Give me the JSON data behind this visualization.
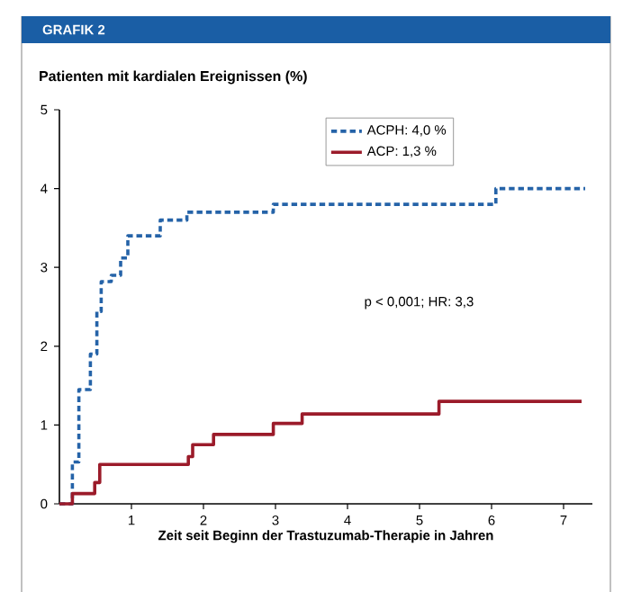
{
  "chart_data": {
    "type": "step",
    "title": "GRAFIK 2",
    "ylabel": "Patienten mit kardialen Ereignissen (%)",
    "xlabel": "Zeit seit Beginn der Trastuzumab-Therapie in Jahren",
    "annotations": [
      "p < 0,001; HR: 3,3"
    ],
    "series": [
      {
        "name": "ACPH: 4,0 %",
        "color": "#2563a8",
        "line_style": "dashed",
        "x": [
          0,
          0.18,
          0.27,
          0.43,
          0.52,
          0.58,
          0.72,
          0.85,
          0.95,
          1.4,
          1.77,
          2.97,
          6.06,
          7.3
        ],
        "values": [
          0,
          0.53,
          1.45,
          1.9,
          2.44,
          2.82,
          2.9,
          3.12,
          3.4,
          3.6,
          3.7,
          3.8,
          4.0,
          4.0
        ]
      },
      {
        "name": "ACP: 1,3 %",
        "color": "#9b1b2a",
        "line_style": "solid",
        "x": [
          0,
          0.18,
          0.49,
          0.56,
          1.79,
          1.85,
          2.14,
          2.97,
          3.37,
          5.27,
          7.25
        ],
        "values": [
          0,
          0.13,
          0.27,
          0.5,
          0.6,
          0.75,
          0.88,
          1.02,
          1.14,
          1.3,
          1.3
        ]
      }
    ],
    "xlim": [
      0,
      7.4
    ],
    "ylim": [
      0,
      5
    ],
    "xticks": [
      1,
      2,
      3,
      4,
      5,
      6,
      7
    ],
    "yticks": [
      0,
      1,
      2,
      3,
      4,
      5
    ],
    "grid": false,
    "legend": "top right",
    "marker": "none"
  }
}
